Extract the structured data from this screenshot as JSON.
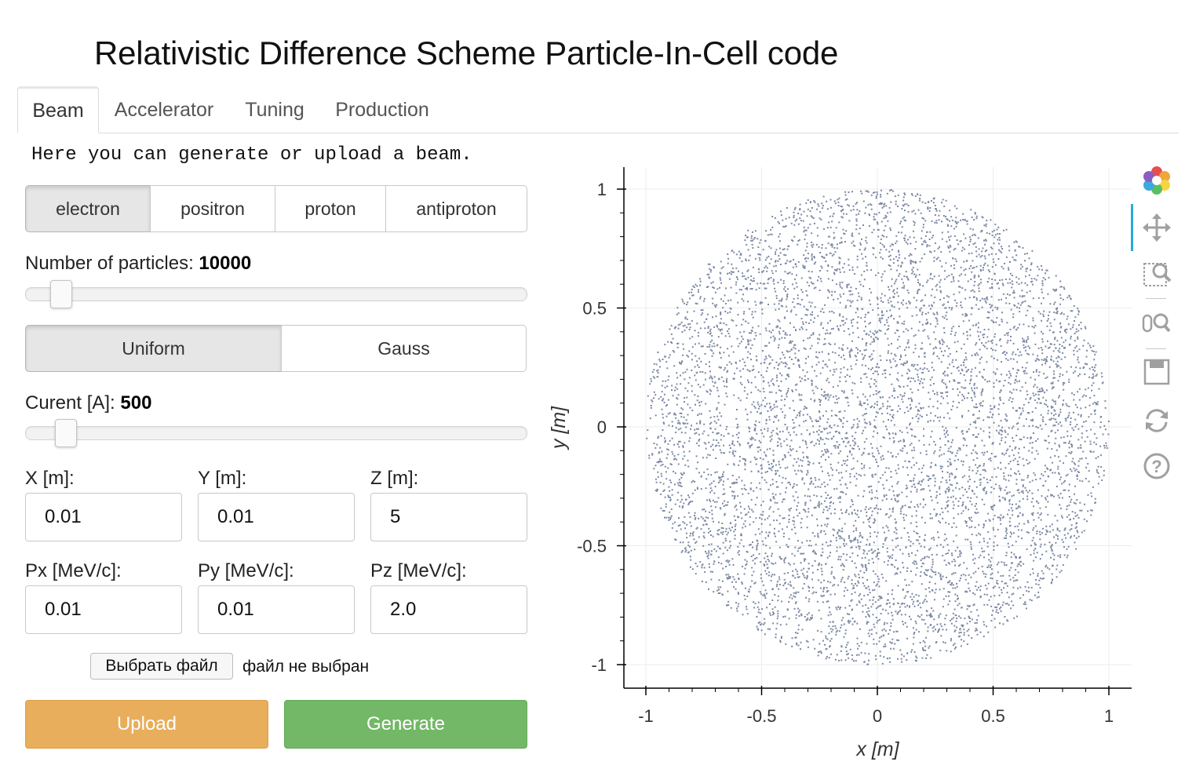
{
  "page": {
    "title": "Relativistic Difference Scheme Particle-In-Cell code"
  },
  "tabs": [
    {
      "label": "Beam",
      "active": true
    },
    {
      "label": "Accelerator",
      "active": false
    },
    {
      "label": "Tuning",
      "active": false
    },
    {
      "label": "Production",
      "active": false
    }
  ],
  "beam": {
    "intro": "Here you can generate or upload a beam.",
    "particle_types": [
      "electron",
      "positron",
      "proton",
      "antiproton"
    ],
    "selected_particle": "electron",
    "num_particles": {
      "label": "Number of particles: ",
      "value": "10000",
      "fraction": 0.05
    },
    "distribution_types": [
      "Uniform",
      "Gauss"
    ],
    "selected_distribution": "Uniform",
    "current": {
      "label": "Curent [A]: ",
      "value": "500",
      "fraction": 0.06
    },
    "fields": {
      "x": {
        "label": "X [m]:",
        "value": "0.01"
      },
      "y": {
        "label": "Y [m]:",
        "value": "0.01"
      },
      "z": {
        "label": "Z [m]:",
        "value": "5"
      },
      "px": {
        "label": "Px [MeV/c]:",
        "value": "0.01"
      },
      "py": {
        "label": "Py [MeV/c]:",
        "value": "0.01"
      },
      "pz": {
        "label": "Pz [MeV/c]:",
        "value": "2.0"
      }
    },
    "file": {
      "button_label": "Выбрать файл",
      "status": "файл не выбран"
    },
    "upload_label": "Upload",
    "generate_label": "Generate"
  },
  "plot_toolbar": [
    {
      "name": "bokeh-logo-icon"
    },
    {
      "name": "pan-icon"
    },
    {
      "name": "box-zoom-icon"
    },
    {
      "name": "wheel-zoom-icon"
    },
    {
      "name": "save-icon"
    },
    {
      "name": "reset-icon"
    },
    {
      "name": "help-icon"
    }
  ],
  "chart_data": {
    "type": "scatter",
    "xlabel": "x [m]",
    "ylabel": "y [m]",
    "xlim": [
      -1.0,
      1.0
    ],
    "ylim": [
      -1.0,
      1.0
    ],
    "x_ticks": [
      -1,
      -0.5,
      0,
      0.5,
      1
    ],
    "x_tick_labels": [
      "-1",
      "-0.5",
      "0",
      "0.5",
      "1"
    ],
    "y_ticks": [
      -1,
      -0.5,
      0,
      0.5,
      1
    ],
    "y_tick_labels": [
      "-1",
      "-0.5",
      "0",
      "0.5",
      "1"
    ],
    "grid": true,
    "point_color": "#5b6b8c",
    "distribution": "uniform disk of radius 1 centered at (0, 0)",
    "points_drawn": 7000
  },
  "colors": {
    "upload": "#e8ae5b",
    "generate": "#72b866",
    "toolbar_active": "#26aae1"
  }
}
